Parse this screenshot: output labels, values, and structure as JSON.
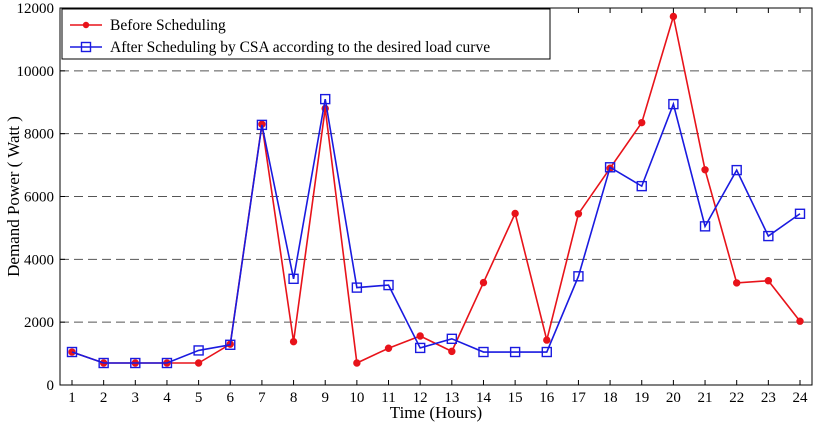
{
  "chart_data": {
    "type": "line",
    "title": "",
    "xlabel": "Time (Hours)",
    "ylabel": "Demand Power ( Watt )",
    "x": [
      1,
      2,
      3,
      4,
      5,
      6,
      7,
      8,
      9,
      10,
      11,
      12,
      13,
      14,
      15,
      16,
      17,
      18,
      19,
      20,
      21,
      22,
      23,
      24
    ],
    "xlim": [
      1,
      24
    ],
    "ylim": [
      0,
      12000
    ],
    "yticks": [
      0,
      2000,
      4000,
      6000,
      8000,
      10000,
      12000
    ],
    "grid": "horizontal-dashed",
    "legend_position": "top-left",
    "series": [
      {
        "name": "Before Scheduling",
        "color": "#e8131a",
        "marker": "filled-circle",
        "values": [
          1050,
          700,
          700,
          700,
          700,
          1300,
          8300,
          1380,
          8800,
          700,
          1170,
          1560,
          1070,
          3260,
          5460,
          1430,
          5450,
          6900,
          8350,
          11730,
          6850,
          3250,
          3320,
          2030
        ]
      },
      {
        "name": "After Scheduling by CSA according to the desired load curve",
        "color": "#1a1ae0",
        "marker": "open-square",
        "values": [
          1050,
          700,
          700,
          700,
          1100,
          1280,
          8280,
          3380,
          9100,
          3100,
          3180,
          1180,
          1470,
          1050,
          1050,
          1050,
          3460,
          6930,
          6330,
          8940,
          5050,
          6840,
          4740,
          5450
        ]
      }
    ]
  }
}
